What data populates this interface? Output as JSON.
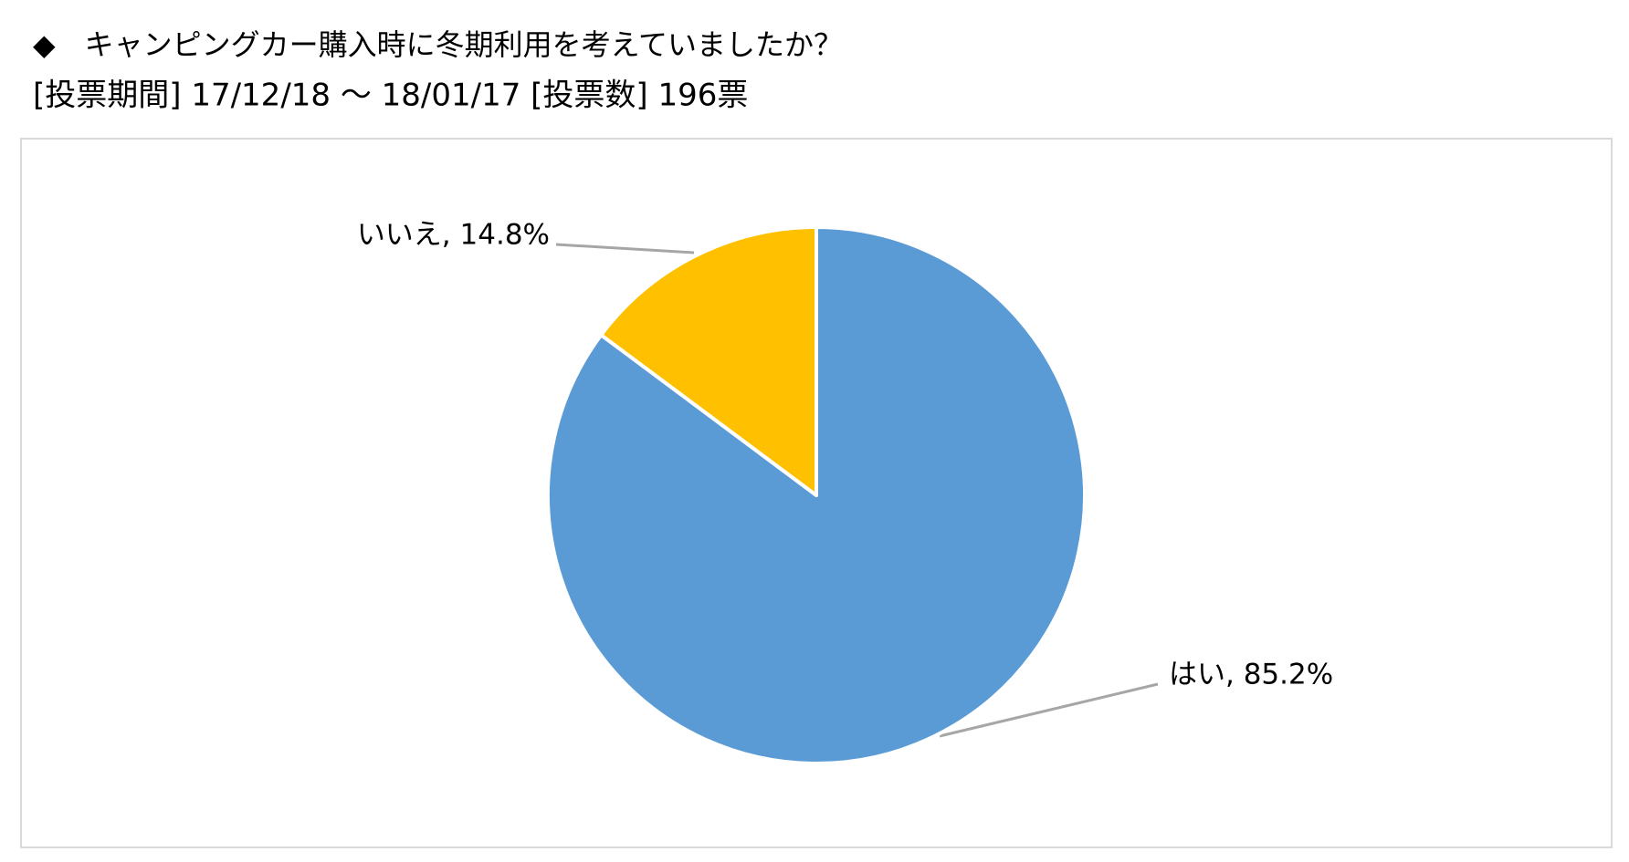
{
  "chart_data": {
    "type": "pie",
    "title": "◆　キャンピングカー購入時に冬期利用を考えていましたか？",
    "subtitle": "[投票期間] 17/12/18 ～ 18/01/17 [投票数] 196票",
    "values": [
      85.2,
      14.8
    ],
    "value_labels": [
      "はい, 85.2%",
      "いいえ, 14.8%"
    ],
    "colors": [
      "#5b9bd5",
      "#ffc000"
    ]
  }
}
